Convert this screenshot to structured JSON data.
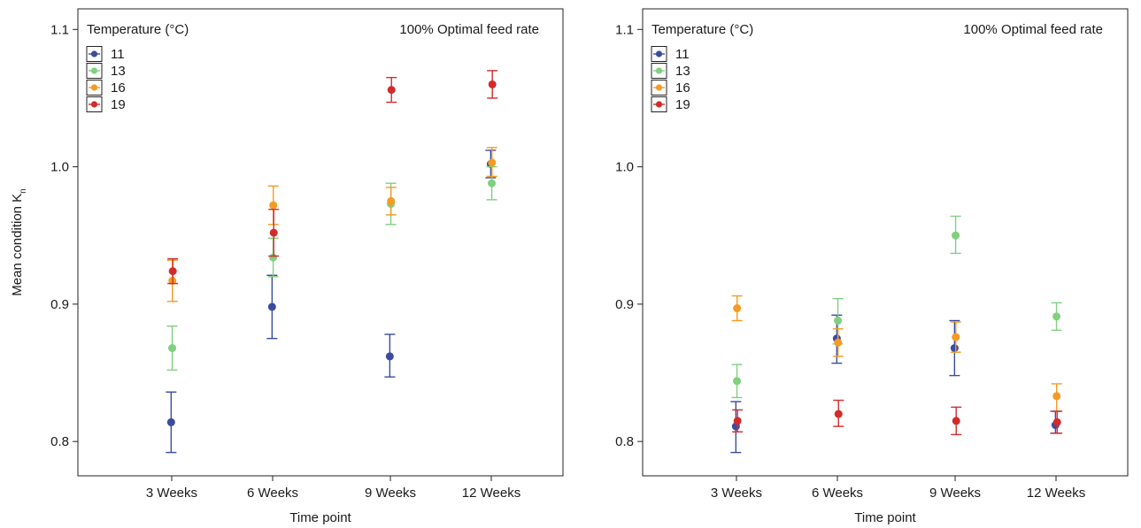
{
  "chart_data": [
    {
      "type": "scatter",
      "title": "100% Optimal feed rate",
      "xlabel": "Time point",
      "ylabel": "Mean condition K",
      "ylabel_sub": "n",
      "categories": [
        "3 Weeks",
        "6 Weeks",
        "9 Weeks",
        "12 Weeks"
      ],
      "ylim": [
        0.775,
        1.115
      ],
      "yticks": [
        0.8,
        0.9,
        1.0,
        1.1
      ],
      "ytick_labels": [
        "0.8",
        "0.9",
        "1.0",
        "1.1"
      ],
      "grid": false,
      "legend": {
        "title": "Temperature (°C)",
        "position": "top-left"
      },
      "series": [
        {
          "name": "11",
          "color": "#3b4ba0",
          "values": [
            0.814,
            0.898,
            0.862,
            1.002
          ],
          "lower": [
            0.792,
            0.875,
            0.847,
            0.992
          ],
          "upper": [
            0.836,
            0.921,
            0.878,
            1.012
          ]
        },
        {
          "name": "13",
          "color": "#7fd07f",
          "values": [
            0.868,
            0.934,
            0.973,
            0.988
          ],
          "lower": [
            0.852,
            0.92,
            0.958,
            0.976
          ],
          "upper": [
            0.884,
            0.948,
            0.988,
            1.0
          ]
        },
        {
          "name": "16",
          "color": "#f59a23",
          "values": [
            0.917,
            0.972,
            0.975,
            1.003
          ],
          "lower": [
            0.902,
            0.958,
            0.965,
            0.993
          ],
          "upper": [
            0.932,
            0.986,
            0.985,
            1.014
          ]
        },
        {
          "name": "19",
          "color": "#d22b2b",
          "values": [
            0.924,
            0.952,
            1.056,
            1.06
          ],
          "lower": [
            0.915,
            0.935,
            1.047,
            1.05
          ],
          "upper": [
            0.933,
            0.969,
            1.065,
            1.07
          ]
        }
      ]
    },
    {
      "type": "scatter",
      "title": "100% Optimal feed rate",
      "xlabel": "Time point",
      "ylabel": "",
      "categories": [
        "3 Weeks",
        "6 Weeks",
        "9 Weeks",
        "12 Weeks"
      ],
      "ylim": [
        0.775,
        1.115
      ],
      "yticks": [
        0.8,
        0.9,
        1.0,
        1.1
      ],
      "ytick_labels": [
        "0.8",
        "0.9",
        "1.0",
        "1.1"
      ],
      "grid": false,
      "legend": {
        "title": "Temperature (°C)",
        "position": "top-left"
      },
      "series": [
        {
          "name": "11",
          "color": "#3b4ba0",
          "values": [
            0.811,
            0.875,
            0.868,
            0.812
          ],
          "lower": [
            0.792,
            0.857,
            0.848,
            0.806
          ],
          "upper": [
            0.829,
            0.892,
            0.888,
            0.822
          ]
        },
        {
          "name": "13",
          "color": "#7fd07f",
          "values": [
            0.844,
            0.888,
            0.95,
            0.891
          ],
          "lower": [
            0.832,
            0.871,
            0.937,
            0.881
          ],
          "upper": [
            0.856,
            0.904,
            0.964,
            0.901
          ]
        },
        {
          "name": "16",
          "color": "#f59a23",
          "values": [
            0.897,
            0.872,
            0.876,
            0.833
          ],
          "lower": [
            0.888,
            0.862,
            0.865,
            0.822
          ],
          "upper": [
            0.906,
            0.882,
            0.887,
            0.842
          ]
        },
        {
          "name": "19",
          "color": "#d22b2b",
          "values": [
            0.815,
            0.82,
            0.815,
            0.814
          ],
          "lower": [
            0.807,
            0.811,
            0.805,
            0.806
          ],
          "upper": [
            0.823,
            0.83,
            0.825,
            0.822
          ]
        }
      ]
    }
  ]
}
